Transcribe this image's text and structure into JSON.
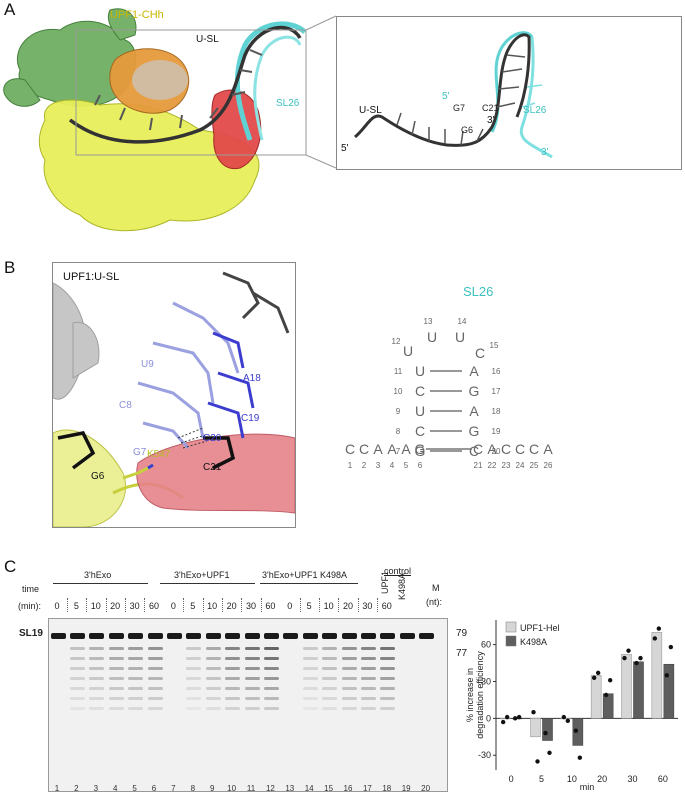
{
  "panelA": {
    "label": "A",
    "structure_title": "UPF1-CHh",
    "usl_label_main": "U-SL",
    "sl26_label_main": "SL26",
    "inset": {
      "sl26": "SL26",
      "usl": "U-SL",
      "five_prime_a": "5'",
      "five_prime_b": "5'",
      "three_prime_a": "3'",
      "three_prime_b": "3'",
      "g7": "G7",
      "c21": "C21",
      "g6": "G6"
    }
  },
  "panelB": {
    "label": "B",
    "box_title": "UPF1:U-SL",
    "residues": {
      "u9": "U9",
      "c8": "C8",
      "g7": "G7",
      "g6": "G6",
      "a18": "A18",
      "c19": "C19",
      "c20": "C20",
      "c21": "C21",
      "k547": "K547"
    },
    "sl26_title": "SL26",
    "loop": [
      {
        "base": "U",
        "num": "13"
      },
      {
        "base": "U",
        "num": "14"
      },
      {
        "base": "U",
        "num": "12"
      },
      {
        "base": "C",
        "num": "15"
      }
    ],
    "stem": [
      {
        "left_num": "11",
        "left": "U",
        "right": "A",
        "right_num": "16"
      },
      {
        "left_num": "10",
        "left": "C",
        "right": "G",
        "right_num": "17"
      },
      {
        "left_num": "9",
        "left": "U",
        "right": "A",
        "right_num": "18"
      },
      {
        "left_num": "8",
        "left": "C",
        "right": "G",
        "right_num": "19"
      },
      {
        "left_num": "7",
        "left": "G",
        "right": "C",
        "right_num": "20"
      }
    ],
    "strand": [
      {
        "base": "C",
        "num": "1"
      },
      {
        "base": "C",
        "num": "2"
      },
      {
        "base": "A",
        "num": "3"
      },
      {
        "base": "A",
        "num": "4"
      },
      {
        "base": "A",
        "num": "5"
      },
      {
        "base": "G",
        "num": "6"
      },
      {
        "base": "C",
        "num": "21"
      },
      {
        "base": "A",
        "num": "22"
      },
      {
        "base": "C",
        "num": "23"
      },
      {
        "base": "C",
        "num": "24"
      },
      {
        "base": "C",
        "num": "25"
      },
      {
        "base": "A",
        "num": "26"
      }
    ]
  },
  "panelC": {
    "label": "C",
    "time_label": "time",
    "min_label": "(min):",
    "groups": [
      "3'hExo",
      "3'hExo+UPF1",
      "3'hExo+UPF1 K498A"
    ],
    "control_label": "control",
    "control_lanes": [
      "UPF1",
      "K498A"
    ],
    "marker_label": "M",
    "marker_unit": "(nt):",
    "times": [
      "0",
      "5",
      "10",
      "20",
      "30",
      "60",
      "0",
      "5",
      "10",
      "20",
      "30",
      "60",
      "0",
      "5",
      "10",
      "20",
      "30",
      "60"
    ],
    "lane_numbers": [
      "1",
      "2",
      "3",
      "4",
      "5",
      "6",
      "7",
      "8",
      "9",
      "10",
      "11",
      "12",
      "13",
      "14",
      "15",
      "16",
      "17",
      "18",
      "19",
      "20"
    ],
    "sl19_label": "SL19",
    "marker_79": "79",
    "marker_77": "77"
  },
  "chart_data": {
    "type": "bar",
    "categories": [
      "0",
      "5",
      "10",
      "20",
      "30",
      "60"
    ],
    "series": [
      {
        "name": "UPF1-Hel",
        "color": "#d6d6d6",
        "values": [
          0,
          -15,
          0,
          35,
          52,
          70
        ],
        "points": [
          [
            -3,
            1
          ],
          [
            5,
            -35
          ],
          [
            1,
            -2
          ],
          [
            33,
            37
          ],
          [
            49,
            55
          ],
          [
            65,
            73
          ]
        ]
      },
      {
        "name": "K498A",
        "color": "#5e5e5e",
        "values": [
          0,
          -18,
          -22,
          20,
          46,
          44
        ],
        "points": [
          [
            0,
            1
          ],
          [
            -12,
            -28
          ],
          [
            -10,
            -32
          ],
          [
            19,
            31
          ],
          [
            45,
            49
          ],
          [
            35,
            58
          ]
        ]
      }
    ],
    "ylabel": "% increase in degradation efficiency",
    "xlabel": "min",
    "yticks": [
      "-30",
      "0",
      "30",
      "60"
    ],
    "ylim": [
      -42,
      80
    ],
    "legend": "top-left"
  }
}
